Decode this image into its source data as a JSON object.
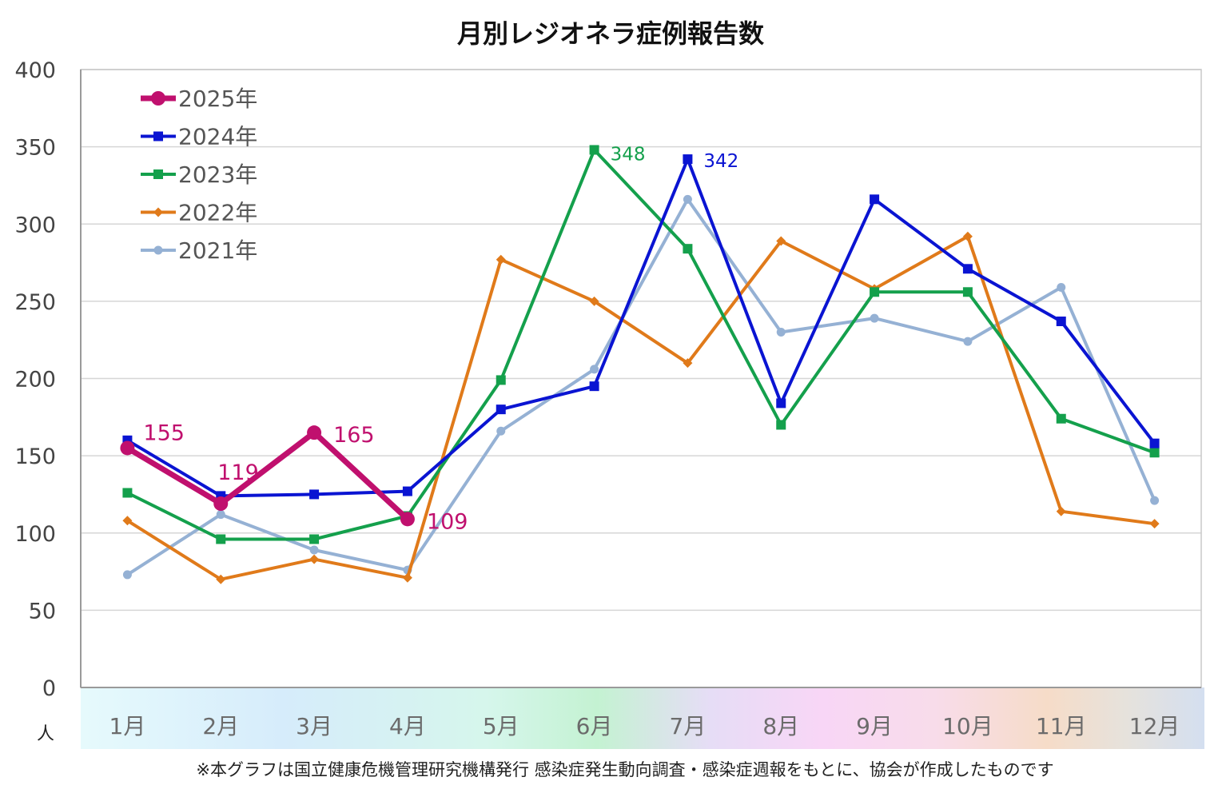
{
  "chart_data": {
    "type": "line",
    "title": "月別レジオネラ症例報告数",
    "y_unit": "人",
    "ylim": [
      0,
      400
    ],
    "yticks": [
      0,
      50,
      100,
      150,
      200,
      250,
      300,
      350,
      400
    ],
    "grid": true,
    "legend_position": "top-left",
    "categories": [
      "1月",
      "2月",
      "3月",
      "4月",
      "5月",
      "6月",
      "7月",
      "8月",
      "9月",
      "10月",
      "11月",
      "12月"
    ],
    "series": [
      {
        "name": "2025年",
        "color": "#c0106e",
        "marker": "circle",
        "emphasis": true,
        "values": [
          155,
          119,
          165,
          109,
          null,
          null,
          null,
          null,
          null,
          null,
          null,
          null
        ]
      },
      {
        "name": "2024年",
        "color": "#0a14d2",
        "marker": "square",
        "emphasis": false,
        "values": [
          160,
          124,
          125,
          127,
          180,
          195,
          342,
          184,
          316,
          271,
          237,
          158
        ]
      },
      {
        "name": "2023年",
        "color": "#14a04c",
        "marker": "square",
        "emphasis": false,
        "values": [
          126,
          96,
          96,
          111,
          199,
          348,
          284,
          170,
          256,
          256,
          174,
          152
        ]
      },
      {
        "name": "2022年",
        "color": "#e07a1a",
        "marker": "diamond",
        "emphasis": false,
        "values": [
          108,
          70,
          83,
          71,
          277,
          250,
          210,
          289,
          258,
          292,
          114,
          106
        ]
      },
      {
        "name": "2021年",
        "color": "#95b1d4",
        "marker": "circle-small",
        "emphasis": false,
        "values": [
          73,
          112,
          89,
          76,
          166,
          206,
          316,
          230,
          239,
          224,
          259,
          121
        ]
      }
    ],
    "annotations": [
      {
        "text": "155",
        "series": "2025年",
        "index": 0,
        "color": "#c0106e"
      },
      {
        "text": "119",
        "series": "2025年",
        "index": 1,
        "color": "#c0106e"
      },
      {
        "text": "165",
        "series": "2025年",
        "index": 2,
        "color": "#c0106e"
      },
      {
        "text": "109",
        "series": "2025年",
        "index": 3,
        "color": "#c0106e"
      },
      {
        "text": "348",
        "series": "2023年",
        "index": 5,
        "color": "#14a04c"
      },
      {
        "text": "342",
        "series": "2024年",
        "index": 6,
        "color": "#0a14d2"
      }
    ],
    "footnote": "※本グラフは国立健康危機管理研究機構発行 感染症発生動向調査・感染症週報をもとに、協会が作成したものです"
  }
}
